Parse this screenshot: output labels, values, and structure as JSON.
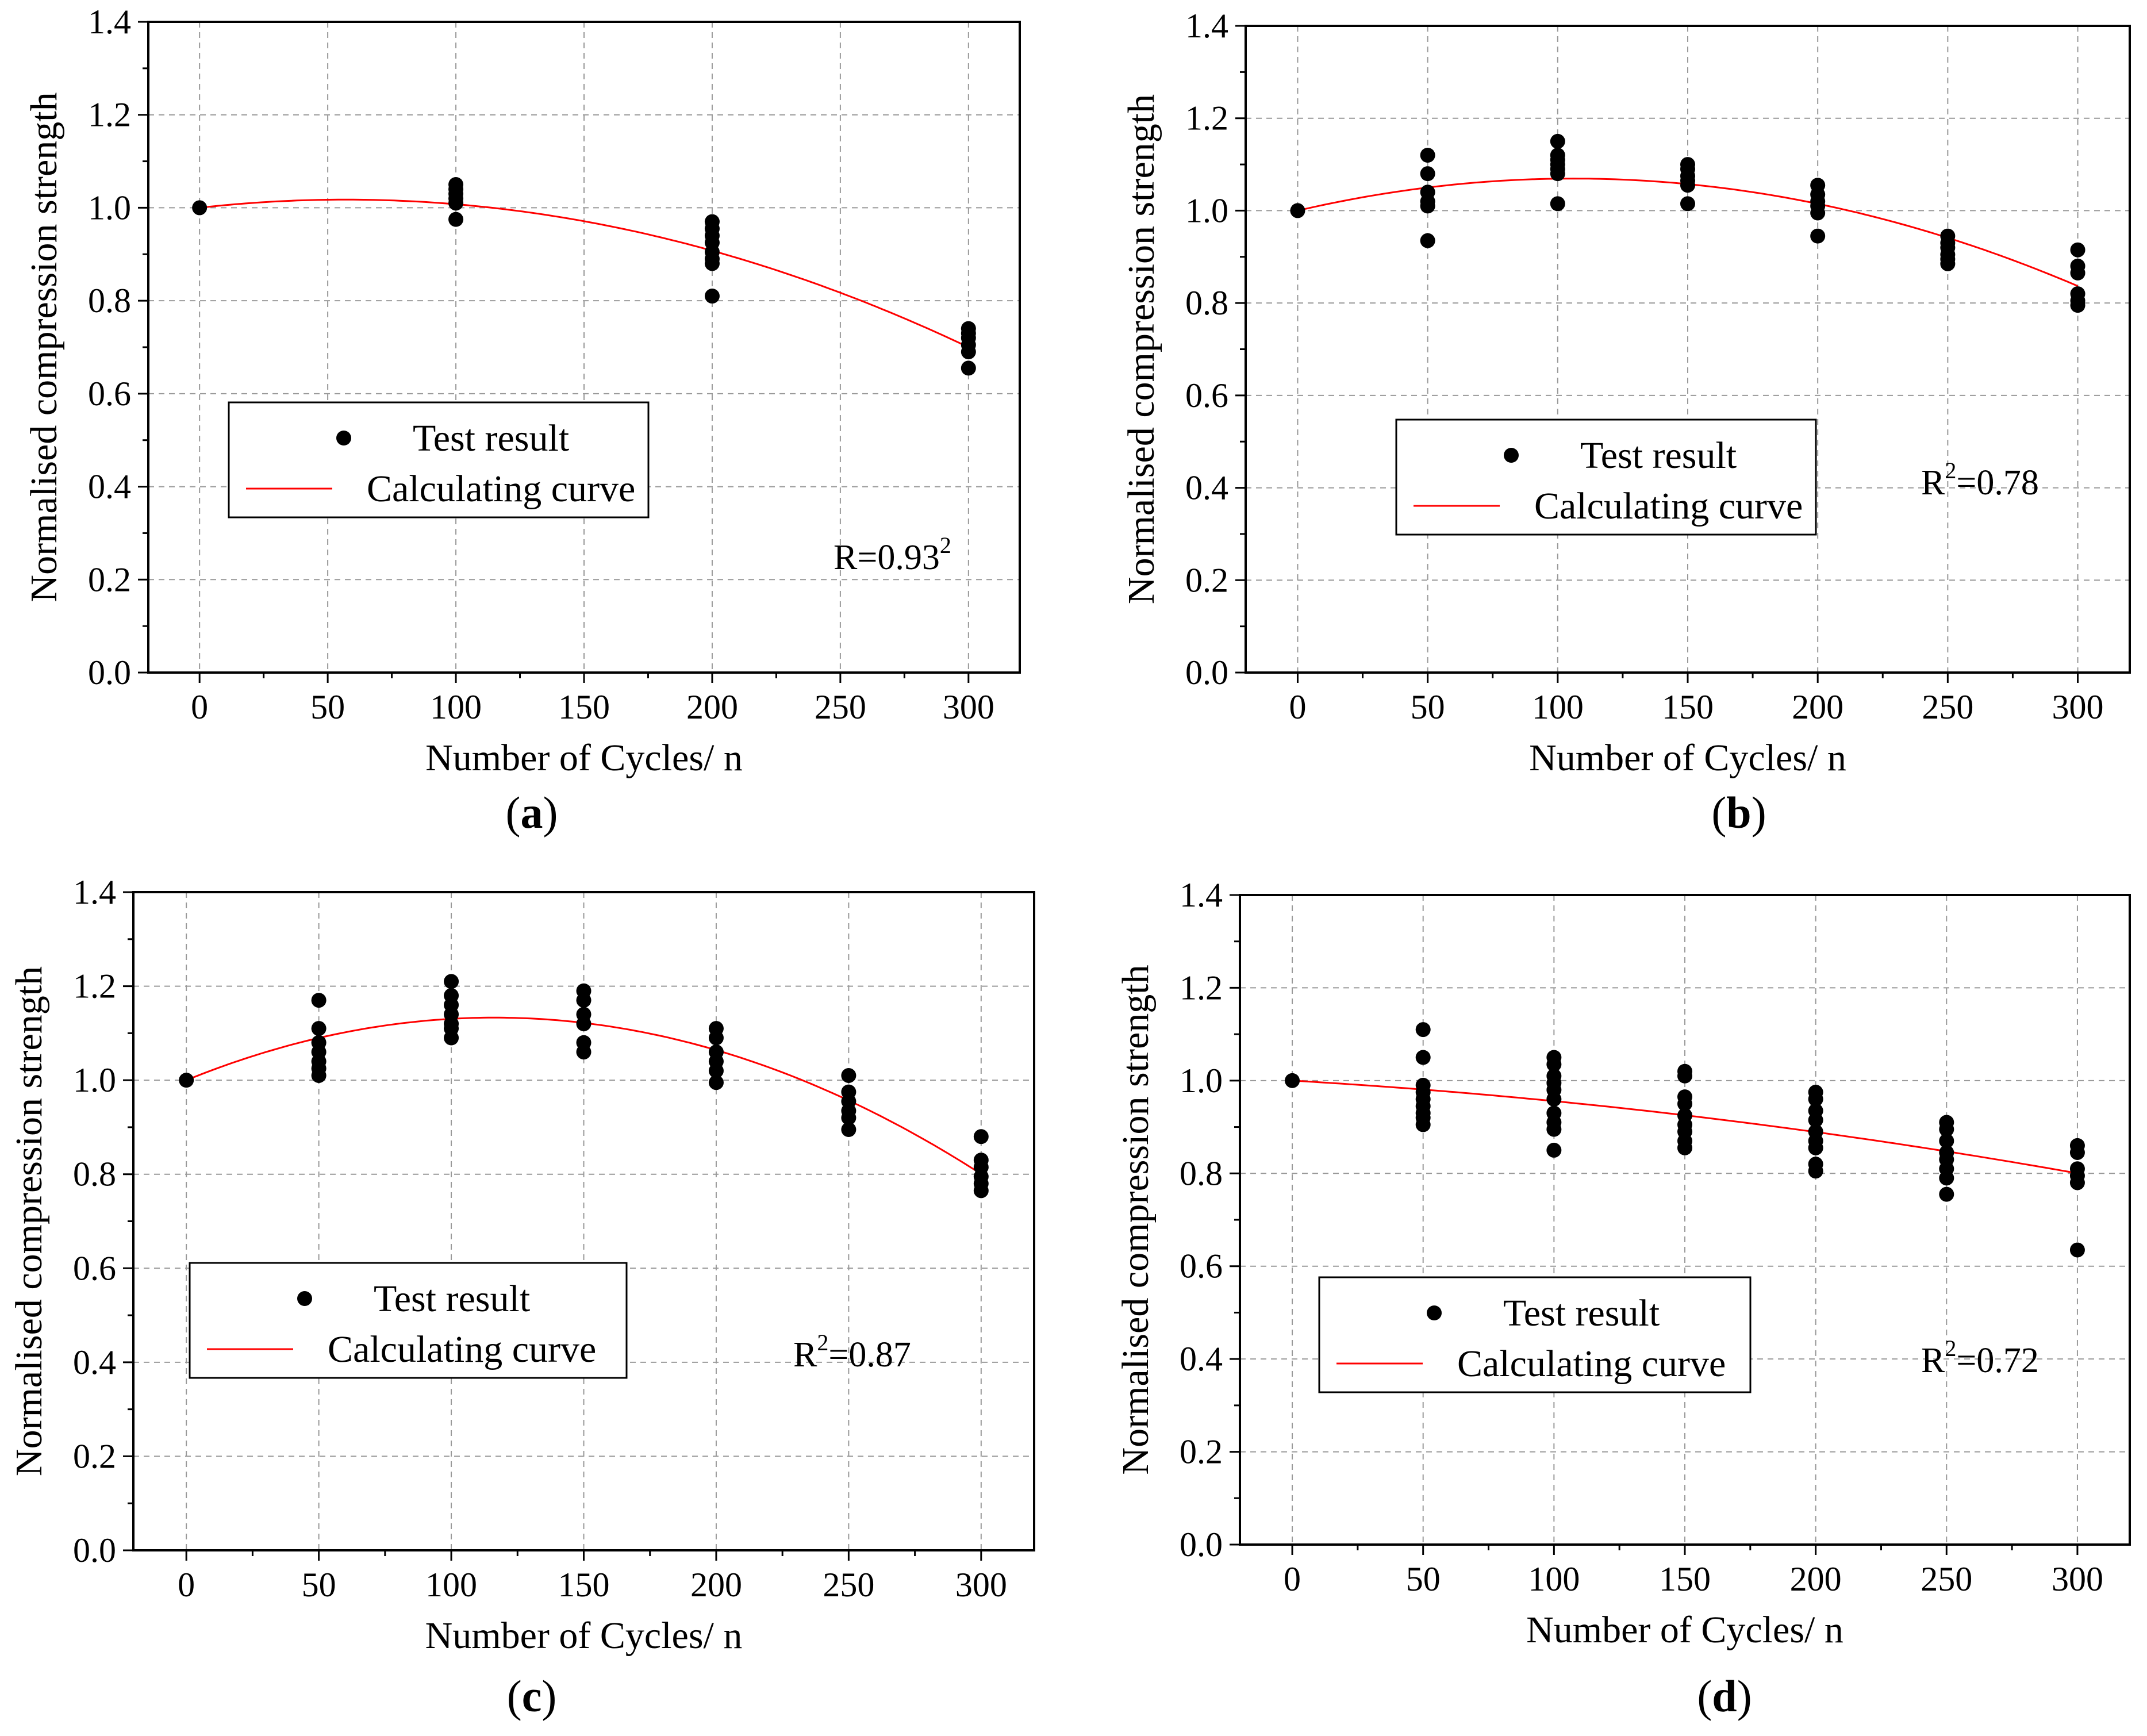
{
  "figure": {
    "description_panels": [
      "a",
      "b",
      "c",
      "d"
    ]
  },
  "chart_data": [
    {
      "id": "a",
      "type": "scatter",
      "caption": "a",
      "xlabel": "Number of Cycles/ n",
      "ylabel": "Normalised compression strength",
      "xlim": [
        -20,
        320
      ],
      "ylim": [
        0.0,
        1.4
      ],
      "xticks": [
        0,
        50,
        100,
        150,
        200,
        250,
        300
      ],
      "yticks": [
        0.0,
        0.2,
        0.4,
        0.6,
        0.8,
        1.0,
        1.2,
        1.4
      ],
      "ytick_labels": [
        "0.0",
        "0.2",
        "0.4",
        "0.6",
        "0.8",
        "1.0",
        "1.2",
        "1.4"
      ],
      "grid": true,
      "legend": {
        "position": "lower-left",
        "scatter_label": "Test result",
        "curve_label": "Calculating curve"
      },
      "annotation": {
        "text": "R=0.93",
        "sup": "2",
        "sup_after": true
      },
      "series": [
        {
          "name": "Test result",
          "kind": "points",
          "points": [
            [
              0,
              1.0
            ],
            [
              100,
              1.05
            ],
            [
              100,
              1.04
            ],
            [
              100,
              1.03
            ],
            [
              100,
              1.02
            ],
            [
              100,
              1.01
            ],
            [
              100,
              0.975
            ],
            [
              200,
              0.97
            ],
            [
              200,
              0.955
            ],
            [
              200,
              0.94
            ],
            [
              200,
              0.925
            ],
            [
              200,
              0.905
            ],
            [
              200,
              0.89
            ],
            [
              200,
              0.88
            ],
            [
              200,
              0.81
            ],
            [
              300,
              0.74
            ],
            [
              300,
              0.73
            ],
            [
              300,
              0.72
            ],
            [
              300,
              0.705
            ],
            [
              300,
              0.69
            ],
            [
              300,
              0.655
            ]
          ]
        },
        {
          "name": "Calculating curve",
          "kind": "curve",
          "color": "#ff0000",
          "coeffs": [
            1.0,
            0.000614,
            -5.38e-06
          ],
          "x_range": [
            0,
            300
          ]
        }
      ]
    },
    {
      "id": "b",
      "type": "scatter",
      "caption": "b",
      "xlabel": "Number of Cycles/ n",
      "ylabel": "Normalised compression strength",
      "xlim": [
        -20,
        320
      ],
      "ylim": [
        0.0,
        1.4
      ],
      "xticks": [
        0,
        50,
        100,
        150,
        200,
        250,
        300
      ],
      "yticks": [
        0.0,
        0.2,
        0.4,
        0.6,
        0.8,
        1.0,
        1.2,
        1.4
      ],
      "ytick_labels": [
        "0.0",
        "0.2",
        "0.4",
        "0.6",
        "0.8",
        "1.0",
        "1.2",
        "1.4"
      ],
      "grid": true,
      "legend": {
        "position": "center-left",
        "scatter_label": "Test result",
        "curve_label": "Calculating curve"
      },
      "annotation": {
        "text": "=0.78",
        "sup": "2",
        "prefix": "R"
      },
      "series": [
        {
          "name": "Test result",
          "kind": "points",
          "points": [
            [
              0,
              1.0
            ],
            [
              50,
              1.12
            ],
            [
              50,
              1.08
            ],
            [
              50,
              1.04
            ],
            [
              50,
              1.02
            ],
            [
              50,
              1.01
            ],
            [
              50,
              0.935
            ],
            [
              100,
              1.15
            ],
            [
              100,
              1.12
            ],
            [
              100,
              1.11
            ],
            [
              100,
              1.1
            ],
            [
              100,
              1.09
            ],
            [
              100,
              1.08
            ],
            [
              100,
              1.015
            ],
            [
              150,
              1.1
            ],
            [
              150,
              1.09
            ],
            [
              150,
              1.075
            ],
            [
              150,
              1.065
            ],
            [
              150,
              1.055
            ],
            [
              150,
              1.015
            ],
            [
              200,
              1.055
            ],
            [
              200,
              1.035
            ],
            [
              200,
              1.02
            ],
            [
              200,
              1.01
            ],
            [
              200,
              0.995
            ],
            [
              200,
              0.945
            ],
            [
              250,
              0.945
            ],
            [
              250,
              0.93
            ],
            [
              250,
              0.92
            ],
            [
              250,
              0.905
            ],
            [
              250,
              0.895
            ],
            [
              250,
              0.885
            ],
            [
              300,
              0.915
            ],
            [
              300,
              0.88
            ],
            [
              300,
              0.865
            ],
            [
              300,
              0.82
            ],
            [
              300,
              0.805
            ],
            [
              300,
              0.795
            ]
          ]
        },
        {
          "name": "Calculating curve",
          "kind": "curve",
          "color": "#ff0000",
          "coeffs": [
            1.0,
            0.00131,
            -6.18e-06
          ],
          "x_range": [
            0,
            300
          ]
        }
      ]
    },
    {
      "id": "c",
      "type": "scatter",
      "caption": "c",
      "xlabel": "Number of Cycles/ n",
      "ylabel": "Normalised compression strength",
      "xlim": [
        -20,
        320
      ],
      "ylim": [
        0.0,
        1.4
      ],
      "xticks": [
        0,
        50,
        100,
        150,
        200,
        250,
        300
      ],
      "yticks": [
        0.0,
        0.2,
        0.4,
        0.6,
        0.8,
        1.0,
        1.2,
        1.4
      ],
      "ytick_labels": [
        "0.0",
        "0.2",
        "0.4",
        "0.6",
        "0.8",
        "1.0",
        "1.2",
        "1.4"
      ],
      "grid": true,
      "legend": {
        "position": "center-left",
        "scatter_label": "Test result",
        "curve_label": "Calculating curve"
      },
      "annotation": {
        "text": "=0.87",
        "sup": "2",
        "prefix": "R"
      },
      "series": [
        {
          "name": "Test result",
          "kind": "points",
          "points": [
            [
              0,
              1.0
            ],
            [
              50,
              1.17
            ],
            [
              50,
              1.11
            ],
            [
              50,
              1.08
            ],
            [
              50,
              1.06
            ],
            [
              50,
              1.04
            ],
            [
              50,
              1.025
            ],
            [
              50,
              1.01
            ],
            [
              100,
              1.21
            ],
            [
              100,
              1.18
            ],
            [
              100,
              1.16
            ],
            [
              100,
              1.14
            ],
            [
              100,
              1.12
            ],
            [
              100,
              1.11
            ],
            [
              100,
              1.09
            ],
            [
              150,
              1.19
            ],
            [
              150,
              1.17
            ],
            [
              150,
              1.14
            ],
            [
              150,
              1.12
            ],
            [
              150,
              1.08
            ],
            [
              150,
              1.06
            ],
            [
              200,
              1.11
            ],
            [
              200,
              1.09
            ],
            [
              200,
              1.06
            ],
            [
              200,
              1.04
            ],
            [
              200,
              1.02
            ],
            [
              200,
              0.995
            ],
            [
              250,
              1.01
            ],
            [
              250,
              0.975
            ],
            [
              250,
              0.955
            ],
            [
              250,
              0.935
            ],
            [
              250,
              0.92
            ],
            [
              250,
              0.895
            ],
            [
              300,
              0.88
            ],
            [
              300,
              0.83
            ],
            [
              300,
              0.815
            ],
            [
              300,
              0.795
            ],
            [
              300,
              0.78
            ],
            [
              300,
              0.765
            ]
          ]
        },
        {
          "name": "Calculating curve",
          "kind": "curve",
          "color": "#ff0000",
          "coeffs": [
            1.0,
            0.00229,
            -9.85e-06
          ],
          "x_range": [
            0,
            300
          ]
        }
      ]
    },
    {
      "id": "d",
      "type": "scatter",
      "caption": "d",
      "xlabel": "Number of Cycles/ n",
      "ylabel": "Normalised compression strength",
      "xlim": [
        -20,
        320
      ],
      "ylim": [
        0.0,
        1.4
      ],
      "xticks": [
        0,
        50,
        100,
        150,
        200,
        250,
        300
      ],
      "yticks": [
        0.0,
        0.2,
        0.4,
        0.6,
        0.8,
        1.0,
        1.2,
        1.4
      ],
      "ytick_labels": [
        "0.0",
        "0.2",
        "0.4",
        "0.6",
        "0.8",
        "1.0",
        "1.2",
        "1.4"
      ],
      "grid": true,
      "legend": {
        "position": "center-left",
        "scatter_label": "Test result",
        "curve_label": "Calculating curve"
      },
      "annotation": {
        "text": "=0.72",
        "sup": "2",
        "prefix": "R"
      },
      "series": [
        {
          "name": "Test result",
          "kind": "points",
          "points": [
            [
              0,
              1.0
            ],
            [
              50,
              1.11
            ],
            [
              50,
              1.05
            ],
            [
              50,
              0.99
            ],
            [
              50,
              0.975
            ],
            [
              50,
              0.96
            ],
            [
              50,
              0.945
            ],
            [
              50,
              0.93
            ],
            [
              50,
              0.92
            ],
            [
              50,
              0.905
            ],
            [
              100,
              1.05
            ],
            [
              100,
              1.035
            ],
            [
              100,
              1.01
            ],
            [
              100,
              0.995
            ],
            [
              100,
              0.98
            ],
            [
              100,
              0.96
            ],
            [
              100,
              0.93
            ],
            [
              100,
              0.91
            ],
            [
              100,
              0.895
            ],
            [
              100,
              0.85
            ],
            [
              150,
              1.02
            ],
            [
              150,
              1.01
            ],
            [
              150,
              0.965
            ],
            [
              150,
              0.95
            ],
            [
              150,
              0.925
            ],
            [
              150,
              0.905
            ],
            [
              150,
              0.89
            ],
            [
              150,
              0.87
            ],
            [
              150,
              0.855
            ],
            [
              200,
              0.975
            ],
            [
              200,
              0.96
            ],
            [
              200,
              0.935
            ],
            [
              200,
              0.915
            ],
            [
              200,
              0.89
            ],
            [
              200,
              0.87
            ],
            [
              200,
              0.855
            ],
            [
              200,
              0.82
            ],
            [
              200,
              0.805
            ],
            [
              250,
              0.91
            ],
            [
              250,
              0.895
            ],
            [
              250,
              0.87
            ],
            [
              250,
              0.845
            ],
            [
              250,
              0.83
            ],
            [
              250,
              0.81
            ],
            [
              250,
              0.79
            ],
            [
              250,
              0.755
            ],
            [
              300,
              0.86
            ],
            [
              300,
              0.845
            ],
            [
              300,
              0.81
            ],
            [
              300,
              0.795
            ],
            [
              300,
              0.78
            ],
            [
              300,
              0.635
            ]
          ]
        },
        {
          "name": "Calculating curve",
          "kind": "curve",
          "color": "#ff0000",
          "coeffs": [
            1.0,
            -0.00033,
            -1.12e-06
          ],
          "x_range": [
            0,
            300
          ]
        }
      ]
    }
  ]
}
